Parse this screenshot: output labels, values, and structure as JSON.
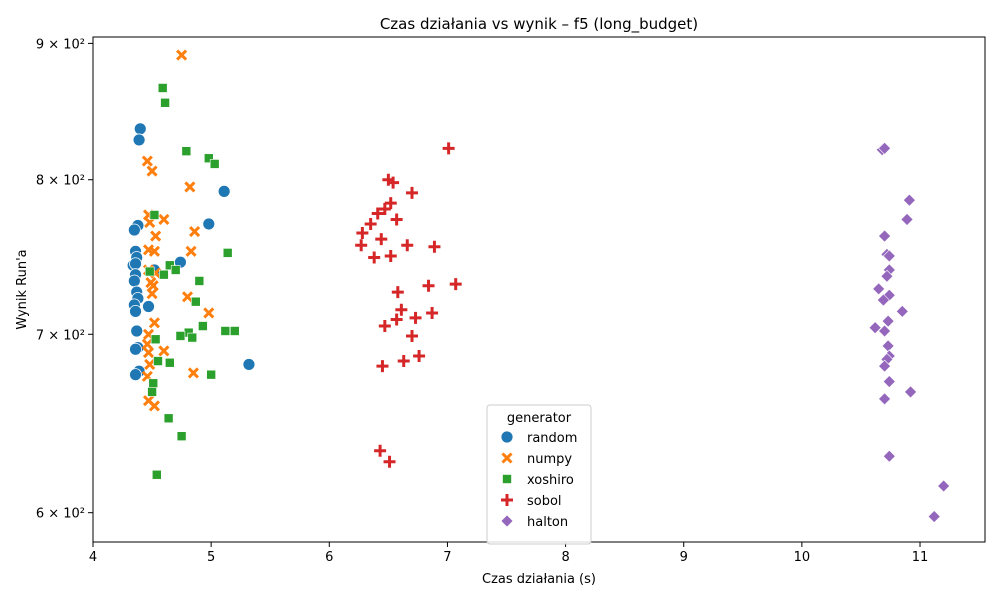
{
  "chart_data": {
    "type": "scatter",
    "title": "Czas działania vs wynik – f5 (long_budget)",
    "xlabel": "Czas działania (s)",
    "ylabel": "Wynik Run'a",
    "xlim": [
      4.0,
      11.55
    ],
    "ylim": [
      585,
      905
    ],
    "yscale": "log",
    "xticks": [
      4,
      5,
      6,
      7,
      8,
      9,
      10,
      11
    ],
    "xtick_labels": [
      "4",
      "5",
      "6",
      "7",
      "8",
      "9",
      "10",
      "11"
    ],
    "yticks": [
      600,
      700,
      800,
      900
    ],
    "ytick_labels": [
      "6 × 10²",
      "7 × 10²",
      "8 × 10²",
      "9 × 10²"
    ],
    "legend": {
      "title": "generator",
      "position": "lower-center"
    },
    "series": [
      {
        "name": "random",
        "color": "#1f77b4",
        "marker": "circle",
        "x": [
          4.4,
          4.39,
          5.11,
          4.98,
          4.38,
          4.35,
          4.36,
          4.37,
          4.34,
          4.36,
          4.74,
          4.52,
          4.36,
          4.35,
          4.37,
          4.38,
          4.35,
          4.47,
          4.36,
          4.37,
          4.38,
          4.36,
          5.32,
          4.39,
          4.36
        ],
        "y": [
          836,
          828,
          792,
          770,
          769,
          766,
          752,
          748,
          743,
          744,
          745,
          740,
          737,
          733,
          726,
          722,
          718,
          717,
          714,
          702,
          692,
          691,
          682,
          678,
          676
        ]
      },
      {
        "name": "numpy",
        "color": "#ff7f0e",
        "marker": "x",
        "x": [
          4.75,
          4.46,
          4.5,
          4.82,
          4.47,
          4.6,
          4.48,
          4.86,
          4.53,
          4.47,
          4.52,
          4.83,
          4.47,
          4.53,
          4.49,
          4.51,
          4.8,
          4.5,
          4.98,
          4.52,
          4.47,
          4.46,
          4.6,
          4.47,
          4.48,
          4.85,
          4.46,
          4.47,
          4.52
        ],
        "y": [
          891,
          813,
          806,
          795,
          776,
          773,
          771,
          765,
          762,
          753,
          752,
          752,
          740,
          738,
          732,
          730,
          723,
          725,
          713,
          707,
          700,
          694,
          690,
          689,
          682,
          677,
          675,
          661,
          658
        ]
      },
      {
        "name": "xoshiro",
        "color": "#2ca02c",
        "marker": "square",
        "x": [
          4.59,
          4.61,
          4.79,
          4.98,
          5.03,
          4.52,
          5.14,
          4.65,
          4.7,
          4.48,
          4.6,
          4.9,
          4.87,
          4.93,
          5.12,
          5.2,
          4.81,
          4.74,
          4.84,
          4.53,
          4.55,
          4.65,
          5.0,
          4.51,
          4.5,
          4.64,
          4.75,
          4.54
        ],
        "y": [
          866,
          855,
          820,
          815,
          811,
          776,
          751,
          743,
          740,
          739,
          737,
          733,
          720,
          705,
          702,
          702,
          701,
          699,
          698,
          697,
          684,
          683,
          676,
          671,
          666,
          651,
          641,
          620
        ]
      },
      {
        "name": "sobol",
        "color": "#d62728",
        "marker": "plus",
        "x": [
          7.01,
          6.5,
          6.54,
          6.7,
          6.52,
          6.47,
          6.41,
          6.57,
          6.35,
          6.28,
          6.44,
          6.27,
          6.66,
          6.89,
          6.52,
          6.38,
          6.84,
          7.07,
          6.58,
          6.61,
          6.87,
          6.57,
          6.73,
          6.47,
          6.7,
          6.76,
          6.63,
          6.45,
          6.43,
          6.51
        ],
        "y": [
          822,
          800,
          798,
          791,
          784,
          780,
          777,
          773,
          770,
          764,
          760,
          756,
          756,
          755,
          749,
          748,
          730,
          731,
          726,
          715,
          713,
          709,
          710,
          705,
          699,
          687,
          684,
          681,
          633,
          627
        ]
      },
      {
        "name": "halton",
        "color": "#9467bd",
        "marker": "diamond",
        "x": [
          10.68,
          10.7,
          10.91,
          10.89,
          10.7,
          10.72,
          10.74,
          10.74,
          10.72,
          10.65,
          10.74,
          10.69,
          10.85,
          10.73,
          10.62,
          10.7,
          10.73,
          10.74,
          10.72,
          10.7,
          10.74,
          10.92,
          10.7,
          10.74,
          11.2,
          11.12
        ],
        "y": [
          821,
          822,
          786,
          773,
          762,
          750,
          749,
          740,
          736,
          728,
          724,
          721,
          714,
          708,
          704,
          702,
          693,
          687,
          685,
          681,
          672,
          666,
          662,
          630,
          614,
          598
        ]
      }
    ]
  }
}
